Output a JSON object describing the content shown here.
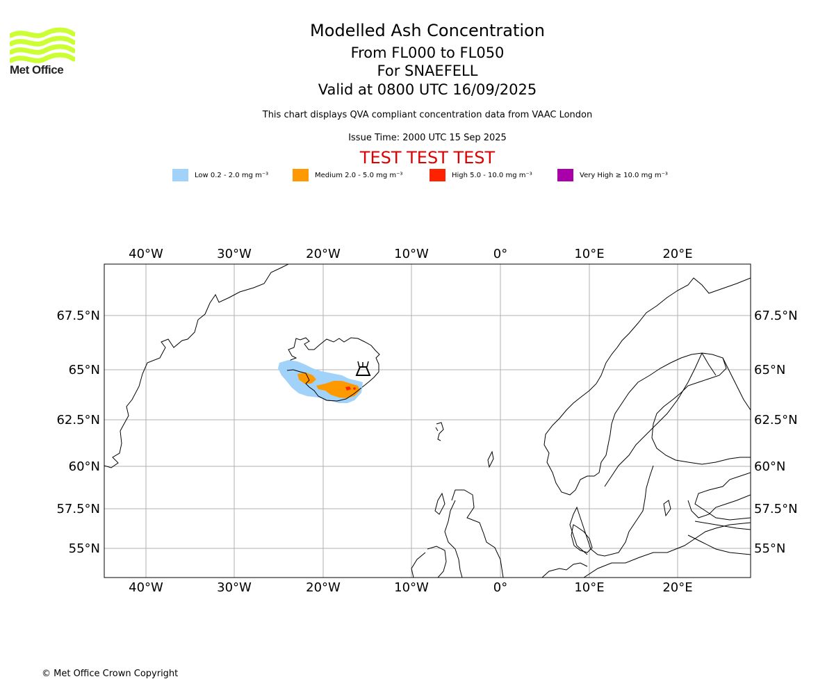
{
  "header": {
    "title": "Modelled Ash Concentration",
    "level_range": "From FL000 to FL050",
    "volcano_line": "For SNAEFELL",
    "valid_line": "Valid at 0800 UTC 16/09/2025",
    "note": "This chart displays QVA compliant concentration data from VAAC London",
    "issue_time": "Issue Time: 2000 UTC 15 Sep 2025",
    "test_banner": "TEST TEST TEST",
    "test_color": "#dd0000"
  },
  "logo": {
    "text": "Met Office",
    "icon": "met-office-wave-logo",
    "color": "#ccff33"
  },
  "legend": [
    {
      "label": "Low 0.2 - 2.0 mg m⁻³",
      "color": "#a0d2fa"
    },
    {
      "label": "Medium 2.0 - 5.0 mg m⁻³",
      "color": "#ff9900"
    },
    {
      "label": "High 5.0 - 10.0 mg m⁻³",
      "color": "#ff2200"
    },
    {
      "label": "Very High ≥ 10.0 mg m⁻³",
      "color": "#aa00aa"
    }
  ],
  "map": {
    "projection": "polar-stereographic-like",
    "grid": true,
    "lon_labels": [
      "40°W",
      "30°W",
      "20°W",
      "10°W",
      "0°",
      "10°E",
      "20°E"
    ],
    "lat_labels": [
      "67.5°N",
      "65°N",
      "62.5°N",
      "60°N",
      "57.5°N",
      "55°N"
    ],
    "volcano_marker_icon": "volcano-icon",
    "ash_area_levels": [
      "Low",
      "Medium",
      "High"
    ]
  },
  "footer": {
    "copyright": "© Met Office Crown Copyright"
  }
}
